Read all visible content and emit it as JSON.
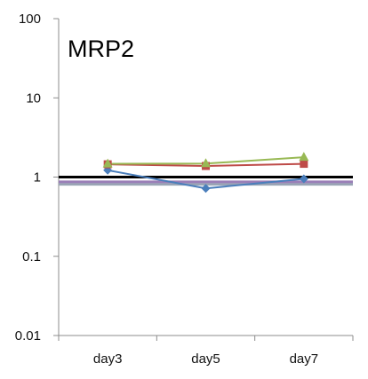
{
  "chart_data": {
    "type": "line",
    "title": "MRP2",
    "xlabel": "",
    "ylabel": "",
    "y_scale": "log",
    "ylim": [
      0.01,
      100
    ],
    "y_ticks": [
      "100",
      "10",
      "1",
      "0.1",
      "0.01"
    ],
    "y_tick_values": [
      100,
      10,
      1,
      0.1,
      0.01
    ],
    "categories": [
      "day3",
      "day5",
      "day7"
    ],
    "grid": false,
    "legend": "none",
    "series": [
      {
        "color": "#4a7ebb",
        "marker": "diamond",
        "values": [
          1.22,
          0.72,
          0.95
        ]
      },
      {
        "color": "#be4b48",
        "marker": "square",
        "values": [
          1.45,
          1.38,
          1.47
        ]
      },
      {
        "color": "#98b954",
        "marker": "triangle",
        "values": [
          1.47,
          1.48,
          1.78
        ]
      }
    ],
    "reference_lines": [
      {
        "color": "#000000",
        "value": 1.0
      },
      {
        "color": "#9a7fb8",
        "value": 0.87
      },
      {
        "color": "#9aa5b5",
        "value": 0.81
      }
    ]
  }
}
